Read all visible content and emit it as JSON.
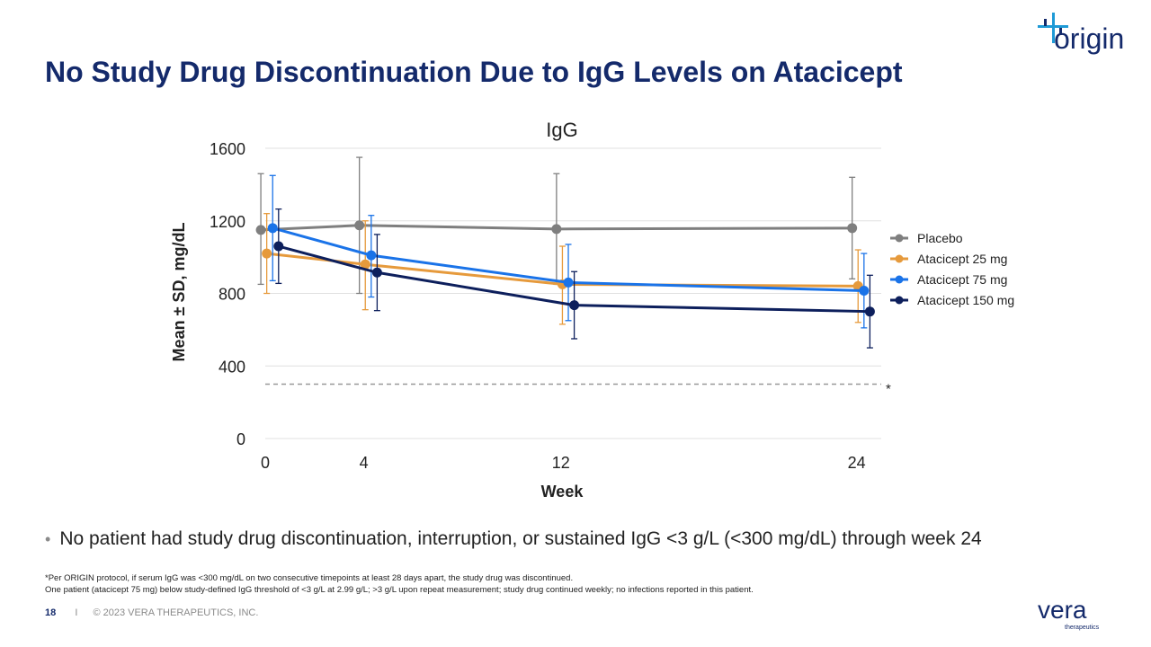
{
  "logo_text": "origin",
  "title": "No Study Drug Discontinuation Due to IgG Levels on Atacicept",
  "chart_data": {
    "type": "line",
    "title": "IgG",
    "xlabel": "Week",
    "ylabel": "Mean ± SD, mg/dL",
    "x": [
      0,
      4,
      12,
      24
    ],
    "x_ticks": [
      "0",
      "4",
      "12",
      "24"
    ],
    "y_ticks": [
      "0",
      "400",
      "800",
      "1200",
      "1600"
    ],
    "xlim": [
      0,
      25
    ],
    "ylim": [
      0,
      1600
    ],
    "grid": true,
    "legend_position": "right",
    "threshold": {
      "value": 300,
      "label": "*",
      "style": "dashed"
    },
    "series": [
      {
        "name": "Placebo",
        "color": "#7f7f7f",
        "values": [
          1150,
          1175,
          1155,
          1160
        ],
        "upper": [
          1460,
          1550,
          1460,
          1440
        ],
        "lower": [
          850,
          800,
          850,
          880
        ]
      },
      {
        "name": "Atacicept 25 mg",
        "color": "#e69a3c",
        "values": [
          1020,
          960,
          850,
          840
        ],
        "upper": [
          1240,
          1200,
          1060,
          1040
        ],
        "lower": [
          800,
          710,
          630,
          640
        ]
      },
      {
        "name": "Atacicept 75 mg",
        "color": "#1a73e8",
        "values": [
          1160,
          1010,
          860,
          815
        ],
        "upper": [
          1450,
          1230,
          1070,
          1020
        ],
        "lower": [
          870,
          780,
          650,
          610
        ]
      },
      {
        "name": "Atacicept 150 mg",
        "color": "#0d1f5c",
        "values": [
          1060,
          915,
          735,
          700
        ],
        "upper": [
          1265,
          1125,
          920,
          900
        ],
        "lower": [
          855,
          705,
          550,
          500
        ]
      }
    ]
  },
  "bullet": "No patient had study drug discontinuation, interruption, or sustained IgG <3 g/L (<300 mg/dL) through week 24",
  "footnote_1": "*Per ORIGIN protocol, if serum IgG was <300 mg/dL on two consecutive timepoints at least 28 days apart, the study drug was discontinued.",
  "footnote_2": "One patient (atacicept 75 mg) below study-defined IgG threshold of <3 g/L at 2.99 g/L; >3 g/L upon repeat measurement; study drug continued weekly; no infections reported in this patient.",
  "footer": {
    "page_number": "18",
    "separator": "I",
    "copyright": "© 2023 VERA THERAPEUTICS, INC."
  },
  "vera_logo": {
    "wordmark": "vera",
    "tagline": "therapeutics"
  }
}
